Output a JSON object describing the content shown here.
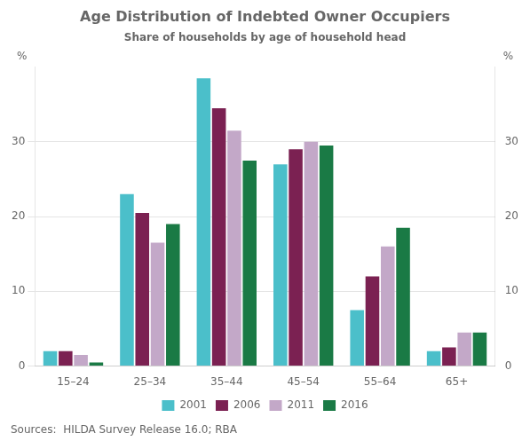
{
  "chart_data": {
    "type": "bar",
    "title": "Age Distribution of Indebted Owner Occupiers",
    "subtitle": "Share of households by age of household head",
    "categories": [
      "15–24",
      "25–34",
      "35–44",
      "45–54",
      "55–64",
      "65+"
    ],
    "series": [
      {
        "name": "2001",
        "color": "#4BBFCA",
        "values": [
          2.0,
          23.0,
          38.5,
          27.0,
          7.5,
          2.0
        ]
      },
      {
        "name": "2006",
        "color": "#7B2152",
        "values": [
          2.0,
          20.5,
          34.5,
          29.0,
          12.0,
          2.5
        ]
      },
      {
        "name": "2011",
        "color": "#C3A8C8",
        "values": [
          1.5,
          16.5,
          31.5,
          30.0,
          16.0,
          4.5
        ]
      },
      {
        "name": "2016",
        "color": "#1A7A45",
        "values": [
          0.5,
          19.0,
          27.5,
          29.5,
          18.5,
          4.5
        ]
      }
    ],
    "ylabel": "%",
    "y2label": "%",
    "ylim": [
      0,
      40
    ],
    "yticks": [
      0,
      10,
      20,
      30
    ],
    "y2lim": [
      0,
      40
    ],
    "y2ticks": [
      0,
      10,
      20,
      30
    ],
    "grid": true,
    "legend": "bottom",
    "source": "Sources:  HILDA Survey Release 16.0; RBA"
  }
}
